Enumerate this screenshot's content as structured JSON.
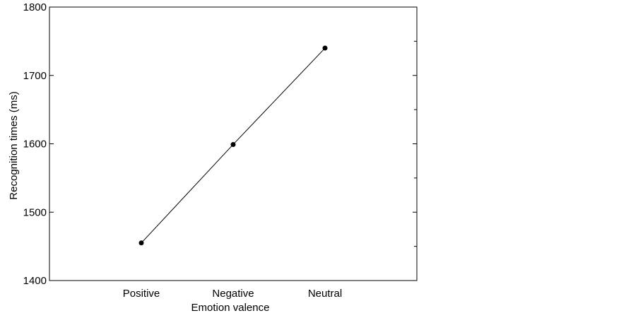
{
  "chart_data": {
    "type": "line",
    "title": "",
    "xlabel": "Emotion valence",
    "ylabel": "Recognition times (ms)",
    "categories": [
      "Positive",
      "Negative",
      "Neutral"
    ],
    "series": [
      {
        "values": [
          1455,
          1599,
          1740
        ]
      }
    ],
    "ylim": [
      1400,
      1800
    ],
    "yticks": [
      1400,
      1500,
      1600,
      1700,
      1800
    ],
    "grid": false,
    "legend": "none",
    "colors": {
      "line": "#000000",
      "marker": "#000000",
      "frame": "#000000"
    }
  }
}
